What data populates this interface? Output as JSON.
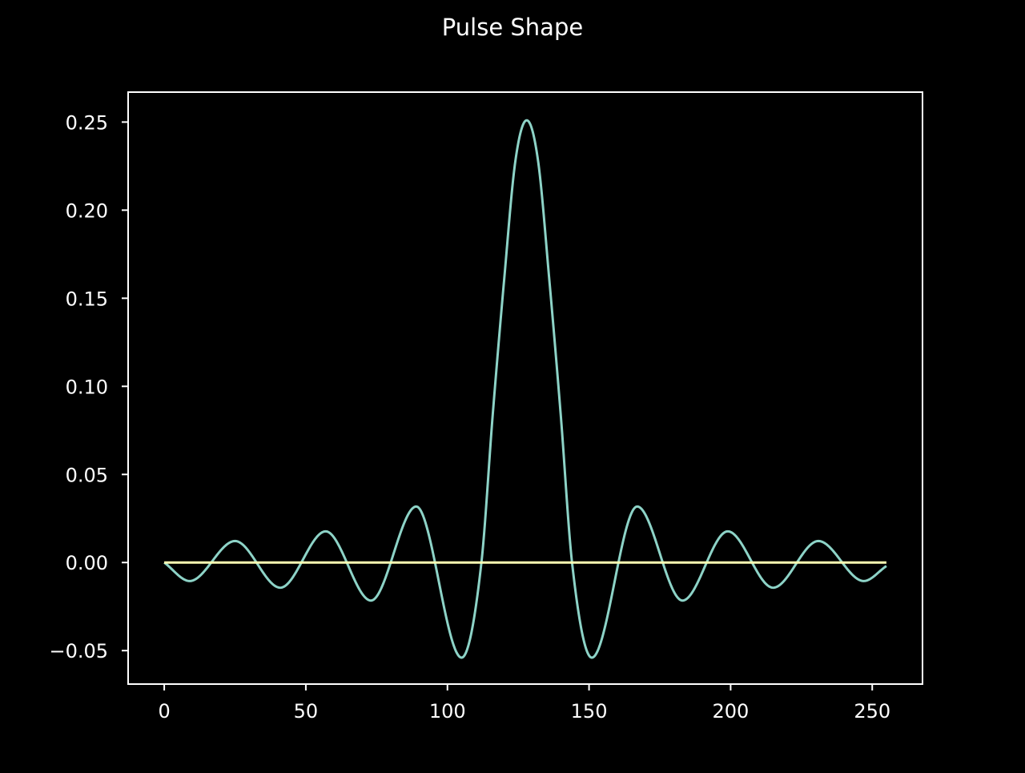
{
  "chart_data": {
    "type": "line",
    "title": "Pulse Shape",
    "xlabel": "",
    "ylabel": "",
    "xlim": [
      -12.75,
      267.75
    ],
    "ylim": [
      -0.069,
      0.267
    ],
    "x_ticks": [
      0,
      50,
      100,
      150,
      200,
      250
    ],
    "x_tick_labels": [
      "0",
      "50",
      "100",
      "150",
      "200",
      "250"
    ],
    "y_ticks": [
      -0.05,
      0.0,
      0.05,
      0.1,
      0.15,
      0.2,
      0.25
    ],
    "y_tick_labels": [
      "−0.05",
      "0.00",
      "0.05",
      "0.10",
      "0.15",
      "0.20",
      "0.25"
    ],
    "grid": false,
    "legend": "none",
    "background_color": "#000000",
    "axes_color": "#ffffff",
    "series": [
      {
        "color": "#8dd3c7",
        "x": [
          0,
          9,
          25,
          41,
          57,
          73,
          89,
          105,
          112,
          116,
          120,
          124,
          128,
          132,
          136,
          140,
          144,
          151,
          167,
          183,
          199,
          215,
          231,
          247,
          255
        ],
        "y": [
          0.0,
          -0.0105,
          0.0122,
          -0.0143,
          0.0177,
          -0.0216,
          0.0318,
          -0.054,
          0.0,
          0.084,
          0.16,
          0.228,
          0.251,
          0.228,
          0.16,
          0.084,
          0.0,
          -0.054,
          0.0318,
          -0.0216,
          0.0177,
          -0.0143,
          0.0122,
          -0.0105,
          -0.002
        ]
      },
      {
        "color": "#ffffb3",
        "x": [
          0,
          255
        ],
        "y": [
          0.0,
          0.0
        ]
      }
    ]
  }
}
